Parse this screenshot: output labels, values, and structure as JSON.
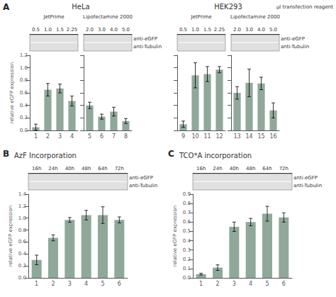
{
  "chart_data": [
    {
      "type": "bar",
      "panel": "A",
      "group": "HeLa",
      "title": "JetPrime",
      "lane_labels": [
        "0.5",
        "1.0",
        "1.5",
        "2.25"
      ],
      "categories": [
        "1",
        "2",
        "3",
        "4"
      ],
      "values": [
        0.05,
        0.65,
        0.67,
        0.47
      ],
      "errors": [
        0.05,
        0.1,
        0.07,
        0.08
      ],
      "color": "#8fa89a",
      "ylabel": "relative eGFP expression",
      "ylim": [
        0,
        1.2
      ],
      "yticks": [
        {
          "value": 0,
          "label": "0.0"
        },
        0.2,
        0.4,
        0.6,
        0.8,
        {
          "value": 1,
          "label": "1.0"
        },
        1.2
      ],
      "grid": false
    },
    {
      "type": "bar",
      "title": "Lipofectamine 2000",
      "lane_labels": [
        "2.0",
        "3.0",
        "4.0",
        "5.0"
      ],
      "blot_labels": [
        "anti-eGFP",
        "anti-Tubulin"
      ],
      "categories": [
        "5",
        "6",
        "7",
        "8"
      ],
      "values": [
        0.4,
        0.22,
        0.3,
        0.15
      ],
      "errors": [
        0.05,
        0.04,
        0.07,
        0.04
      ],
      "color": "#8fa89a",
      "ylim": [
        0,
        1.2
      ],
      "yticks": [
        0,
        0.2,
        0.4,
        0.6,
        0.8,
        1,
        1.2
      ],
      "tick_labels": "x",
      "grid": false
    },
    {
      "type": "bar",
      "group": "HEK293",
      "title": "JetPrime",
      "note": "µl transfection reagent",
      "lane_labels": [
        "0.5",
        "1.0",
        "1.5",
        "2.25"
      ],
      "categories": [
        "9",
        "10",
        "11",
        "12"
      ],
      "values": [
        0.1,
        0.88,
        0.9,
        0.97
      ],
      "errors": [
        0.05,
        0.2,
        0.12,
        0.05
      ],
      "color": "#8fa89a",
      "ylim": [
        0,
        1.2
      ],
      "yticks": [
        0,
        0.2,
        0.4,
        0.6,
        0.8,
        1,
        1.2
      ],
      "tick_labels": "x",
      "grid": false
    },
    {
      "type": "bar",
      "title": "Lipofectamine 2000",
      "lane_labels": [
        "2.0",
        "3.0",
        "4.0",
        "5.0"
      ],
      "blot_labels": [
        "anti-eGFP",
        "anti-Tubulin"
      ],
      "categories": [
        "13",
        "14",
        "15",
        "16"
      ],
      "values": [
        0.6,
        0.76,
        0.75,
        0.32
      ],
      "errors": [
        0.1,
        0.22,
        0.1,
        0.12
      ],
      "color": "#8fa89a",
      "ylim": [
        0,
        1.2
      ],
      "yticks": [
        0,
        0.2,
        0.4,
        0.6,
        0.8,
        1,
        1.2
      ],
      "tick_labels": "x",
      "grid": false
    },
    {
      "type": "bar",
      "panel": "B",
      "title": "AzF Incorporation",
      "lane_labels": [
        "16h",
        "24h",
        "40h",
        "48h",
        "64h",
        "72h"
      ],
      "blot_labels": [
        "anti-eGFP",
        "anti-Tubulin"
      ],
      "categories": [
        "1",
        "2",
        "3",
        "4",
        "5",
        "6"
      ],
      "values": [
        0.3,
        0.67,
        0.97,
        1.05,
        1.05,
        0.97
      ],
      "errors": [
        0.08,
        0.05,
        0.04,
        0.08,
        0.14,
        0.05
      ],
      "color": "#8fa89a",
      "ylabel": "relative eGFP expression",
      "ylim": [
        0,
        1.4
      ],
      "yticks": [
        {
          "value": 0,
          "label": "0.0"
        },
        0.2,
        0.4,
        0.6,
        0.8,
        {
          "value": 1,
          "label": "1.0"
        },
        1.2,
        1.4
      ],
      "grid": false
    },
    {
      "type": "bar",
      "panel": "C",
      "title": "TCO*A incorporation",
      "lane_labels": [
        "16h",
        "24h",
        "40h",
        "48h",
        "64h",
        "72h"
      ],
      "blot_labels": [
        "anti-eGFP",
        "anti-Tubulin"
      ],
      "categories": [
        "1",
        "2",
        "3",
        "4",
        "5",
        "6"
      ],
      "values": [
        0.04,
        0.11,
        0.55,
        0.6,
        0.69,
        0.65
      ],
      "errors": [
        0.01,
        0.03,
        0.05,
        0.04,
        0.08,
        0.05
      ],
      "color": "#8fa89a",
      "ylabel": "relative eGFP expression",
      "ylim": [
        0,
        0.9
      ],
      "yticks": [
        {
          "value": 0,
          "label": "0.0"
        },
        0.1,
        0.2,
        0.3,
        0.4,
        0.5,
        0.6,
        0.7,
        0.8,
        0.9
      ],
      "grid": false
    }
  ]
}
